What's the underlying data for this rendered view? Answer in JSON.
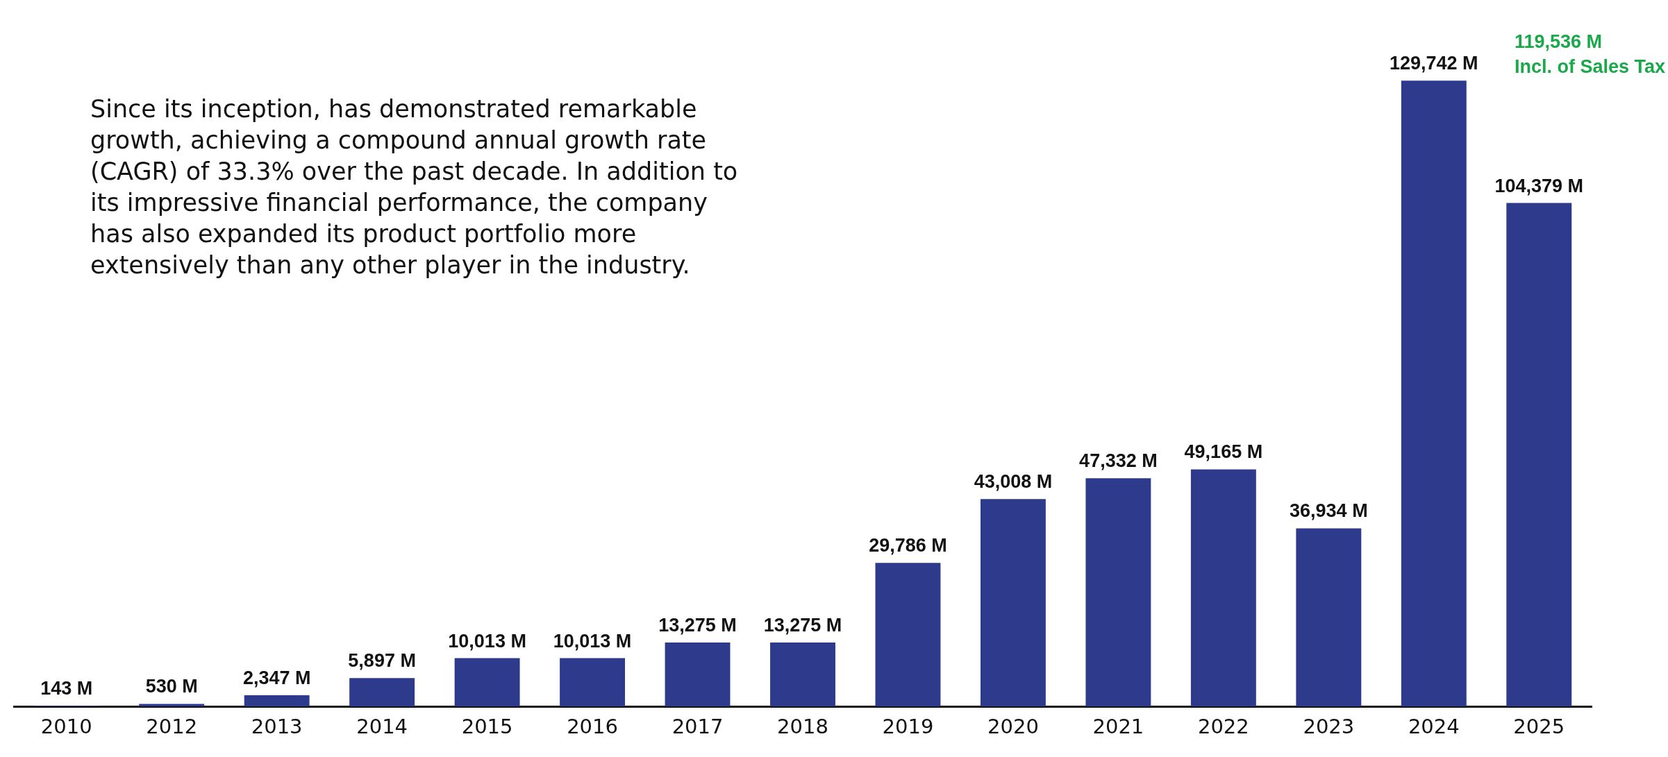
{
  "chart_data": {
    "type": "bar",
    "categories": [
      "2010",
      "2012",
      "2013",
      "2014",
      "2015",
      "2016",
      "2017",
      "2018",
      "2019",
      "2020",
      "2021",
      "2022",
      "2023",
      "2024",
      "2025"
    ],
    "values": [
      143,
      530,
      2347,
      5897,
      10013,
      10013,
      13275,
      13275,
      29786,
      43008,
      47332,
      49165,
      36934,
      129742,
      104379
    ],
    "value_labels": [
      "143 M",
      "530 M",
      "2,347 M",
      "5,897 M",
      "10,013 M",
      "10,013 M",
      "13,275 M",
      "13,275 M",
      "29,786 M",
      "43,008 M",
      "47,332 M",
      "49,165 M",
      "36,934 M",
      "129,742 M",
      "104,379 M"
    ],
    "color": "#2e3a8c",
    "tick_labels": "x",
    "grid": false,
    "legend": false,
    "annotations": [
      "Since its inception, has demonstrated remarkable growth, achieving a compound annual growth rate (CAGR) of 33.3% over the past decade. In addition to its impressive financial performance, the company has also expanded its product portfolio more extensively than any other player in the industry.",
      "119,536 M\nIncl. of Sales Tax"
    ]
  }
}
